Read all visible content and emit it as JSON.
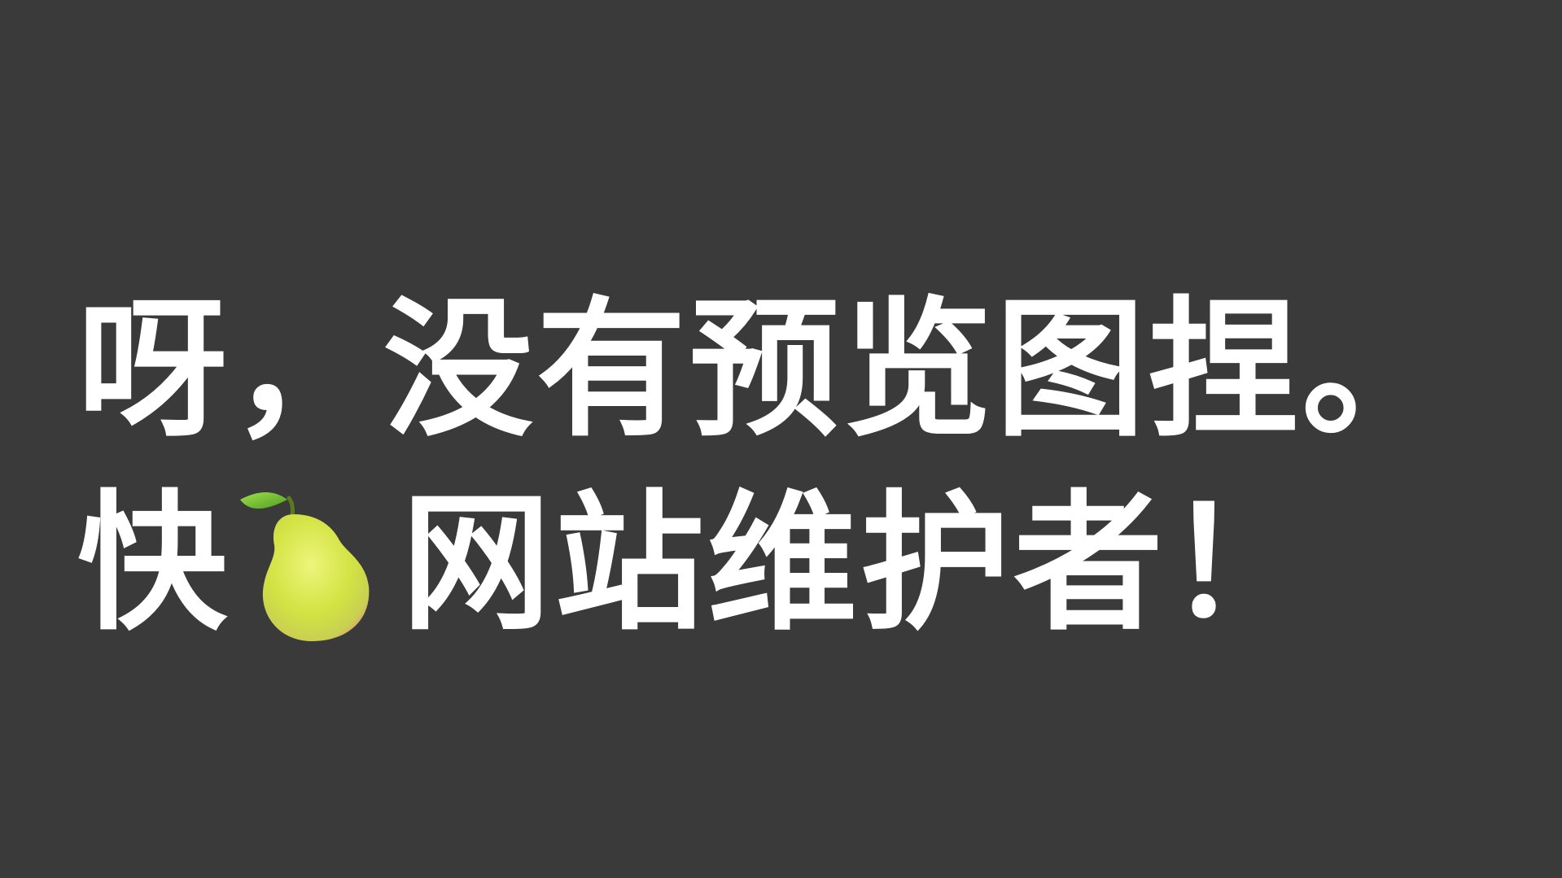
{
  "message": {
    "line1": "呀，没有预览图捏。",
    "line2_before": "快",
    "line2_after": "网站维护者！",
    "icon": "pear-icon"
  },
  "colors": {
    "background": "#3a3a3a",
    "text": "#ffffff",
    "pear_body": "#d6e84a",
    "pear_bottom": "#e8868a",
    "pear_leaf": "#7fc93a"
  }
}
